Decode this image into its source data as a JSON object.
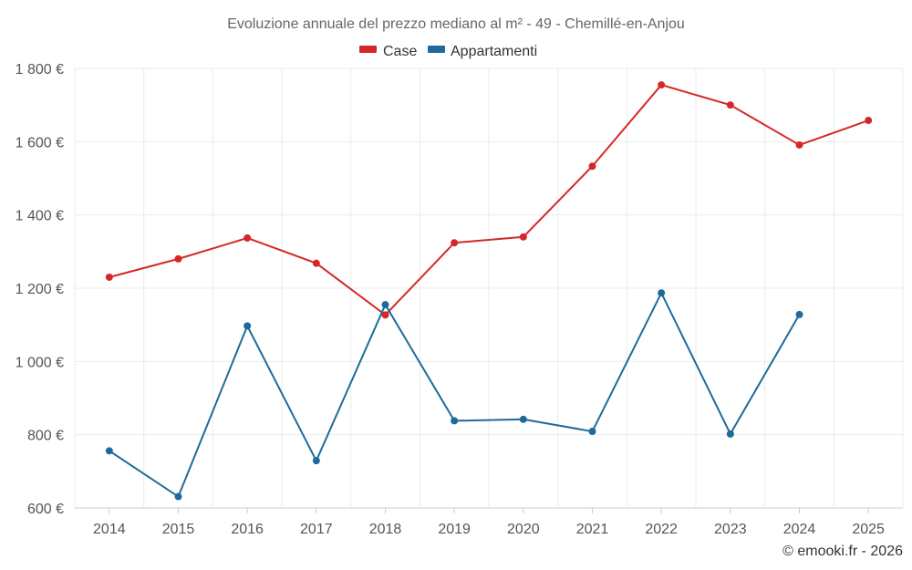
{
  "chart_data": {
    "type": "line",
    "title": "Evoluzione annuale del prezzo mediano al m² - 49 - Chemillé-en-Anjou",
    "categories": [
      "2014",
      "2015",
      "2016",
      "2017",
      "2018",
      "2019",
      "2020",
      "2021",
      "2022",
      "2023",
      "2024",
      "2025"
    ],
    "series": [
      {
        "name": "Case",
        "color": "#d62728",
        "values": [
          1230,
          1280,
          1337,
          1268,
          1127,
          1324,
          1340,
          1533,
          1755,
          1700,
          1591,
          1658
        ]
      },
      {
        "name": "Appartamenti",
        "color": "#1f6a9a",
        "values": [
          756,
          631,
          1097,
          729,
          1155,
          838,
          842,
          809,
          1187,
          802,
          1128,
          null
        ]
      }
    ],
    "ylim": [
      600,
      1800
    ],
    "yticks": [
      600,
      800,
      1000,
      1200,
      1400,
      1600,
      1800
    ],
    "ytick_labels": [
      "600 €",
      "800 €",
      "1 000 €",
      "1 200 €",
      "1 400 €",
      "1 600 €",
      "1 800 €"
    ],
    "legend_position": "top-center",
    "grid": true,
    "xlabel": "",
    "ylabel": ""
  },
  "credit": "© emooki.fr - 2026"
}
